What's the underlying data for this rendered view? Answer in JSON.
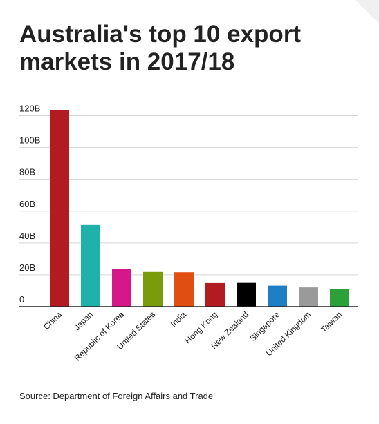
{
  "title": "Australia's top 10 export markets in 2017/18",
  "source": "Source: Department of Foreign Affairs and Trade",
  "chart_data": {
    "type": "bar",
    "title": "Australia's top 10 export markets in 2017/18",
    "xlabel": "",
    "ylabel": "",
    "ylim": [
      0,
      125
    ],
    "yticks": [
      {
        "value": 0,
        "label": "0"
      },
      {
        "value": 20,
        "label": "20B"
      },
      {
        "value": 40,
        "label": "40B"
      },
      {
        "value": 60,
        "label": "60B"
      },
      {
        "value": 80,
        "label": "80B"
      },
      {
        "value": 100,
        "label": "100B"
      },
      {
        "value": 120,
        "label": "120B"
      }
    ],
    "grid": true,
    "categories": [
      "China",
      "Japan",
      "Republic of Korea",
      "United States",
      "India",
      "Hong Kong",
      "New Zealand",
      "Singapore",
      "United Kingdom",
      "Taiwan"
    ],
    "values": [
      123.4,
      51.3,
      23.7,
      21.8,
      21.6,
      14.8,
      14.9,
      13.2,
      12.1,
      11.2
    ],
    "colors": [
      "#b31b22",
      "#1fb2aa",
      "#d6178a",
      "#7a9b0b",
      "#e04e12",
      "#b31b22",
      "#000000",
      "#1f7fc5",
      "#9a9a9a",
      "#2ca137"
    ]
  }
}
